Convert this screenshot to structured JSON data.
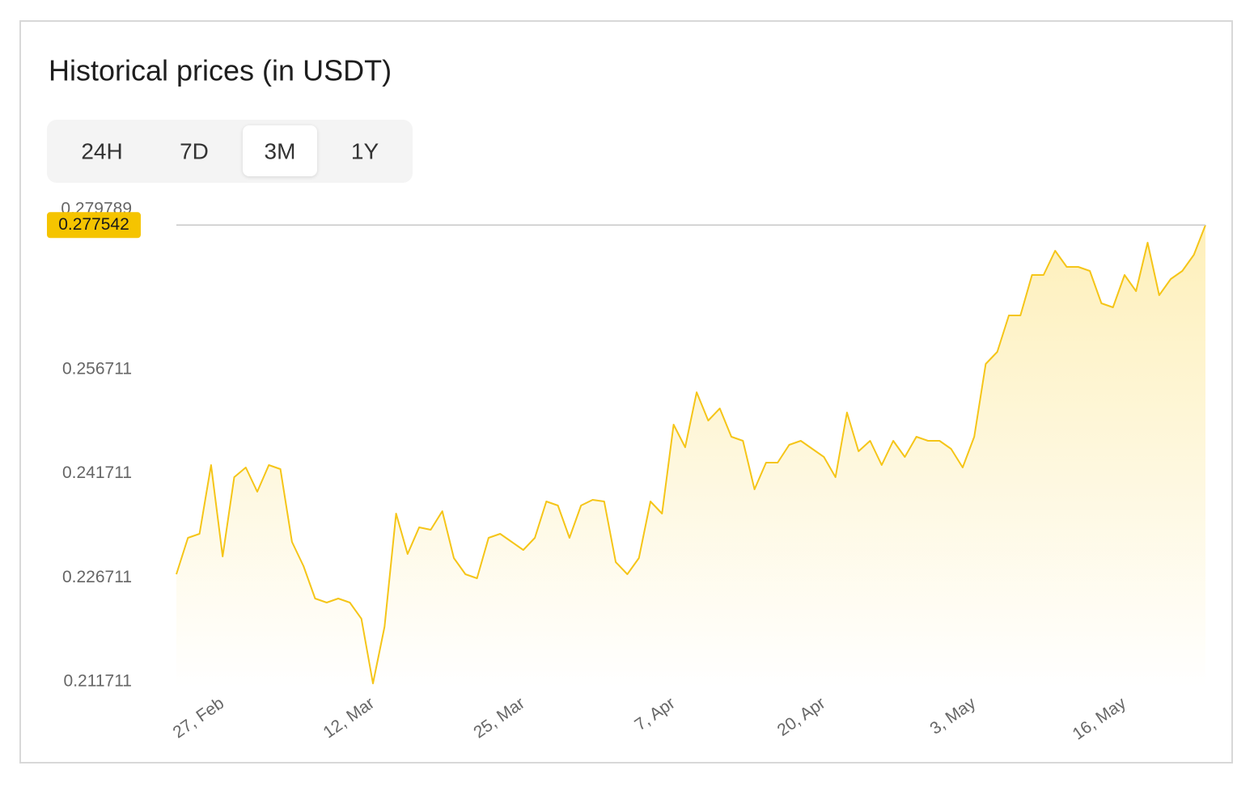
{
  "chart_data": {
    "type": "line",
    "title": "Historical prices (in USDT)",
    "tabs": [
      "24H",
      "7D",
      "3M",
      "1Y"
    ],
    "selected_tab": 2,
    "categories": [
      null,
      null,
      null,
      null,
      "27, Feb",
      null,
      null,
      null,
      null,
      null,
      null,
      null,
      null,
      null,
      null,
      null,
      null,
      "12, Mar",
      null,
      null,
      null,
      null,
      null,
      null,
      null,
      null,
      null,
      null,
      null,
      null,
      "25, Mar",
      null,
      null,
      null,
      null,
      null,
      null,
      null,
      null,
      null,
      null,
      null,
      null,
      "7, Apr",
      null,
      null,
      null,
      null,
      null,
      null,
      null,
      null,
      null,
      null,
      null,
      null,
      "20, Apr",
      null,
      null,
      null,
      null,
      null,
      null,
      null,
      null,
      null,
      null,
      null,
      null,
      "3, May",
      null,
      null,
      null,
      null,
      null,
      null,
      null,
      null,
      null,
      null,
      null,
      null,
      "16, May",
      null,
      null,
      null,
      null,
      null,
      null,
      null
    ],
    "values": [
      0.227216,
      0.232462,
      0.233045,
      0.242954,
      0.229781,
      0.241206,
      0.242605,
      0.239107,
      0.242954,
      0.242372,
      0.231879,
      0.228382,
      0.223719,
      0.223136,
      0.223719,
      0.223136,
      0.220804,
      0.211478,
      0.219638,
      0.23596,
      0.230131,
      0.233978,
      0.233628,
      0.236309,
      0.229548,
      0.227216,
      0.226633,
      0.232462,
      0.233045,
      0.231879,
      0.230714,
      0.232462,
      0.237708,
      0.237125,
      0.232462,
      0.237125,
      0.237942,
      0.237708,
      0.228965,
      0.227216,
      0.229548,
      0.237708,
      0.23596,
      0.248783,
      0.245519,
      0.253447,
      0.249366,
      0.251115,
      0.247035,
      0.246452,
      0.239457,
      0.243304,
      0.243304,
      0.245869,
      0.246452,
      0.245286,
      0.24412,
      0.241206,
      0.250532,
      0.244936,
      0.246452,
      0.242954,
      0.246452,
      0.24412,
      0.247035,
      0.246452,
      0.246452,
      0.245286,
      0.242605,
      0.247035,
      0.257527,
      0.259276,
      0.264522,
      0.264522,
      0.270351,
      0.270351,
      0.273848,
      0.271517,
      0.271517,
      0.270934,
      0.26627,
      0.265688,
      0.270351,
      0.268019,
      0.275014,
      0.267436,
      0.269768,
      0.270934,
      0.273265,
      0.277542
    ],
    "color": "#f5c518",
    "current_price": 0.277542,
    "ylim": [
      0.2109,
      0.279789
    ],
    "yticks": [
      0.211711,
      0.226711,
      0.241711,
      0.256711,
      0.279789
    ],
    "grid": false
  }
}
